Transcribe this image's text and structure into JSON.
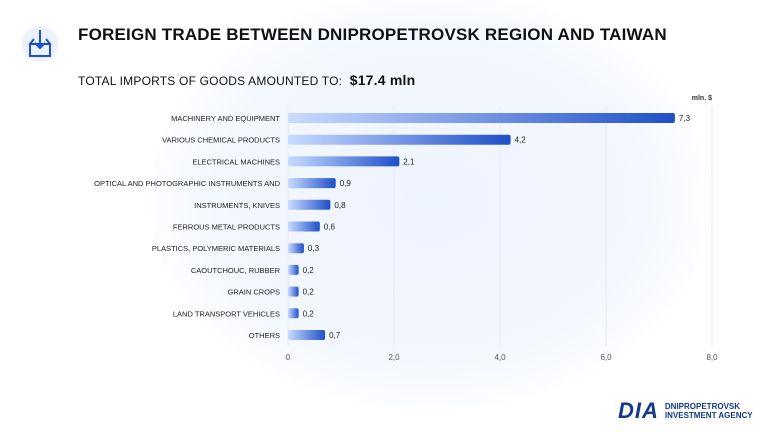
{
  "header": {
    "title": "FOREIGN TRADE BETWEEN DNIPROPETROVSK REGION AND TAIWAN",
    "subtitle_label": "TOTAL IMPORTS OF GOODS AMOUNTED TO:",
    "subtitle_value": "$17.4 mln"
  },
  "colors": {
    "bar_start": "#c9dcff",
    "bar_end": "#1f4fc9",
    "axis_text": "#555555",
    "grid": "#e6e9ef"
  },
  "chart_data": {
    "type": "bar",
    "orientation": "horizontal",
    "unit_label": "mln. $",
    "categories": [
      "MACHINERY AND EQUIPMENT",
      "VARIOUS CHEMICAL PRODUCTS",
      "ELECTRICAL MACHINES",
      "OPTICAL AND PHOTOGRAPHIC INSTRUMENTS AND",
      "INSTRUMENTS, KNIVES",
      "FERROUS METAL PRODUCTS",
      "PLASTICS, POLYMERIC MATERIALS",
      "CAOUTCHOUC, RUBBER",
      "GRAIN CROPS",
      "LAND TRANSPORT VEHICLES",
      "OTHERS"
    ],
    "values": [
      7.3,
      4.2,
      2.1,
      0.9,
      0.8,
      0.6,
      0.3,
      0.2,
      0.2,
      0.2,
      0.7
    ],
    "value_labels": [
      "7,3",
      "4,2",
      "2,1",
      "0,9",
      "0,8",
      "0,6",
      "0,3",
      "0,2",
      "0,2",
      "0,2",
      "0,7"
    ],
    "xlim": [
      0,
      8
    ],
    "xticks": [
      0,
      2,
      4,
      6,
      8
    ],
    "xtick_labels": [
      "0",
      "2,0",
      "4,0",
      "6,0",
      "8,0"
    ],
    "grid": true
  },
  "brand": {
    "logo_text": "DIA",
    "agency_line1": "DNIPROPETROVSK",
    "agency_line2": "INVESTMENT AGENCY"
  }
}
